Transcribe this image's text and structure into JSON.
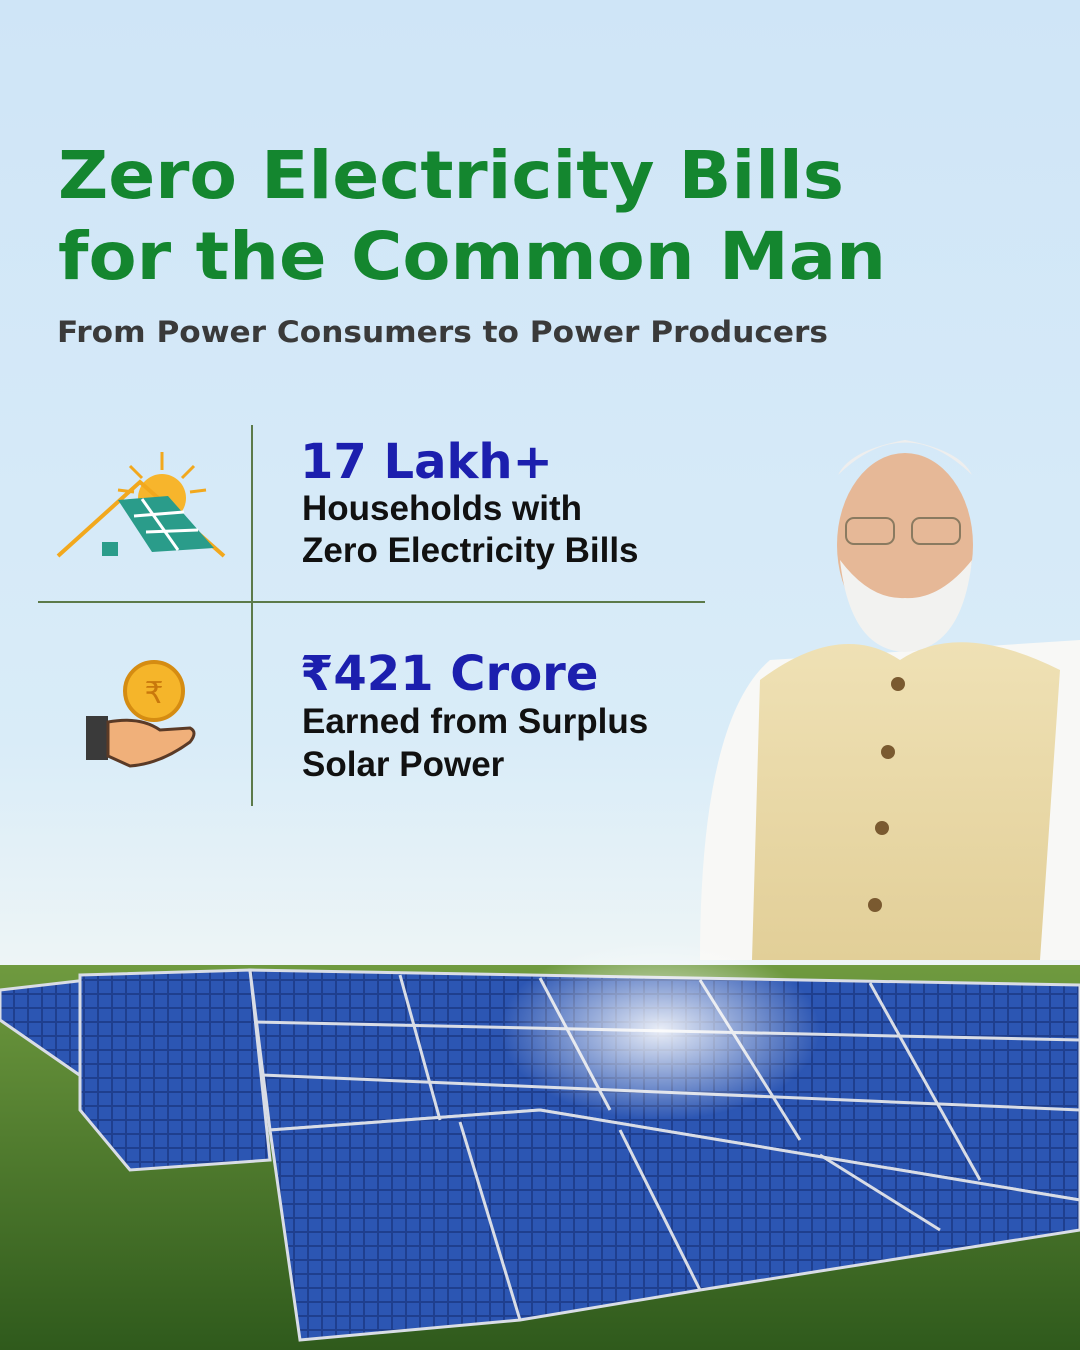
{
  "header": {
    "title_lines": [
      "Zero Electricity Bills",
      "for the Common Man"
    ],
    "subtitle": "From Power Consumers to Power Producers"
  },
  "stats": [
    {
      "value": "17 Lakh+",
      "label_lines": [
        "Households with",
        "Zero Electricity Bills"
      ]
    },
    {
      "value": "₹421 Crore",
      "label_lines": [
        "Earned from Surplus",
        "Solar Power"
      ]
    }
  ]
}
